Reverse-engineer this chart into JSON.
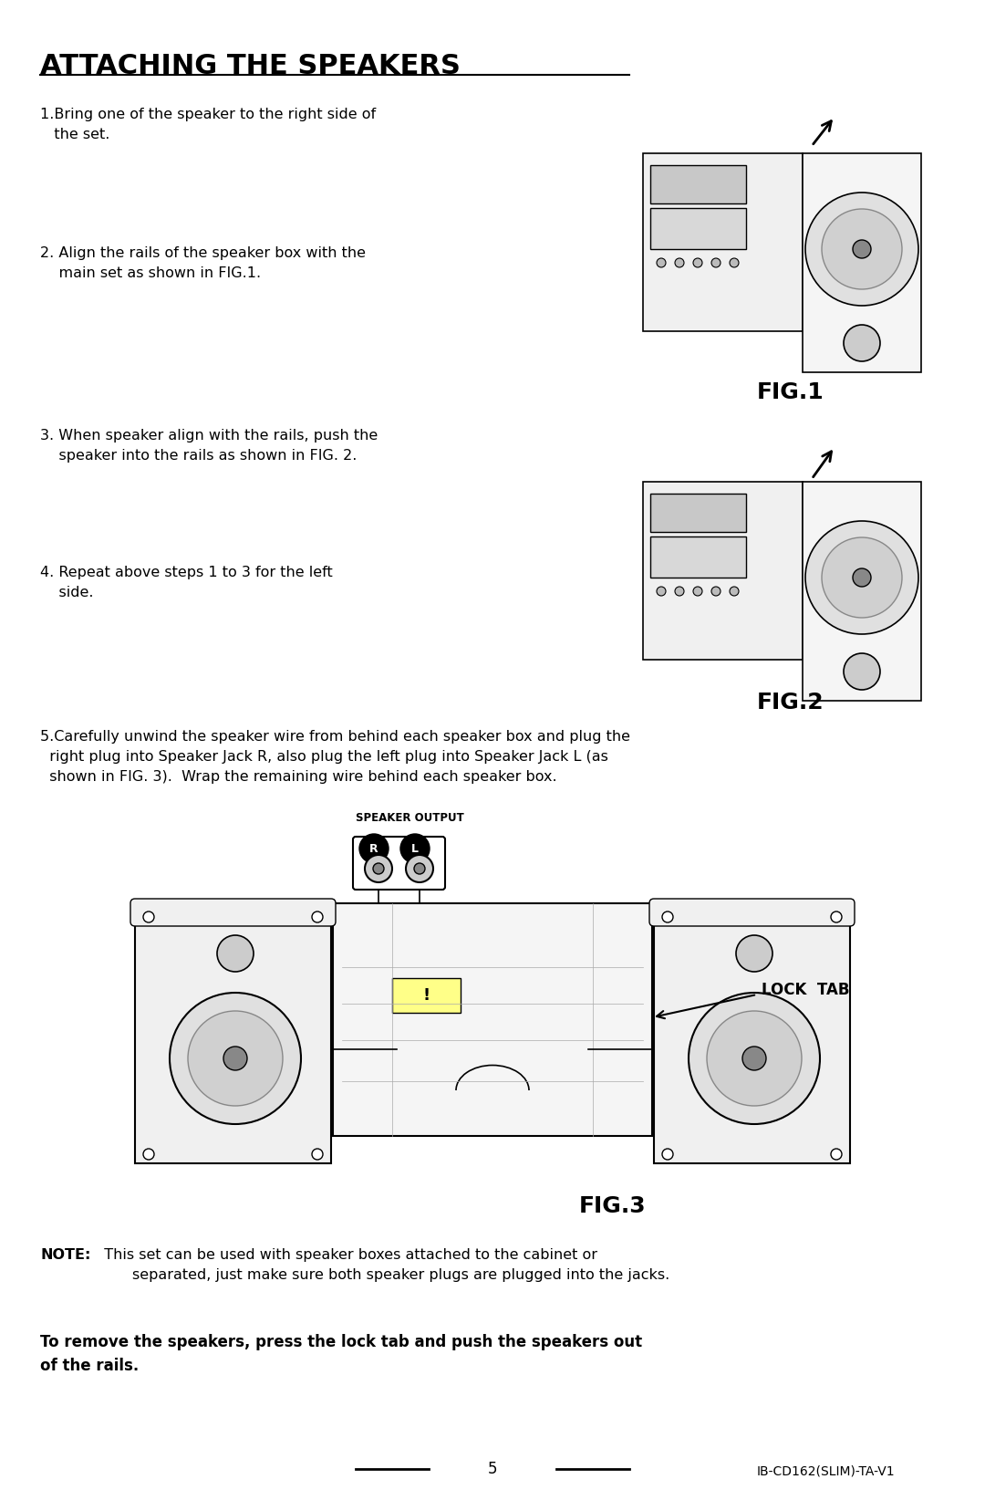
{
  "bg_color": "#ffffff",
  "title": "ATTACHING THE SPEAKERS",
  "title_fontsize": 22,
  "title_fontweight": "bold",
  "body_fontsize": 11.5,
  "fig1_label": "FIG.1",
  "fig2_label": "FIG.2",
  "fig3_label": "FIG.3",
  "fig_label_fontsize": 18,
  "fig_label_fontweight": "bold",
  "step1_text": "1.Bring one of the speaker to the right side of\n   the set.",
  "step2_text": "2. Align the rails of the speaker box with the\n    main set as shown in FIG.1.",
  "step3_text": "3. When speaker align with the rails, push the\n    speaker into the rails as shown in FIG. 2.",
  "step4_text": "4. Repeat above steps 1 to 3 for the left\n    side.",
  "step5_text": "5.Carefully unwind the speaker wire from behind each speaker box and plug the\n  right plug into Speaker Jack R, also plug the left plug into Speaker Jack L (as\n  shown in FIG. 3).  Wrap the remaining wire behind each speaker box.",
  "note_text": "NOTE:",
  "note_body": "  This set can be used with speaker boxes attached to the cabinet or\n        separated, just make sure both speaker plugs are plugged into the jacks.",
  "bold_text": "To remove the speakers, press the lock tab and push the speakers out\nof the rails.",
  "page_num": "5",
  "model_text": "IB-CD162(SLIM)-TA-V1",
  "speaker_output_label": "SPEAKER OUTPUT",
  "lock_tab_label": "LOCK  TAB",
  "jack_r_label": "R",
  "jack_l_label": "L"
}
